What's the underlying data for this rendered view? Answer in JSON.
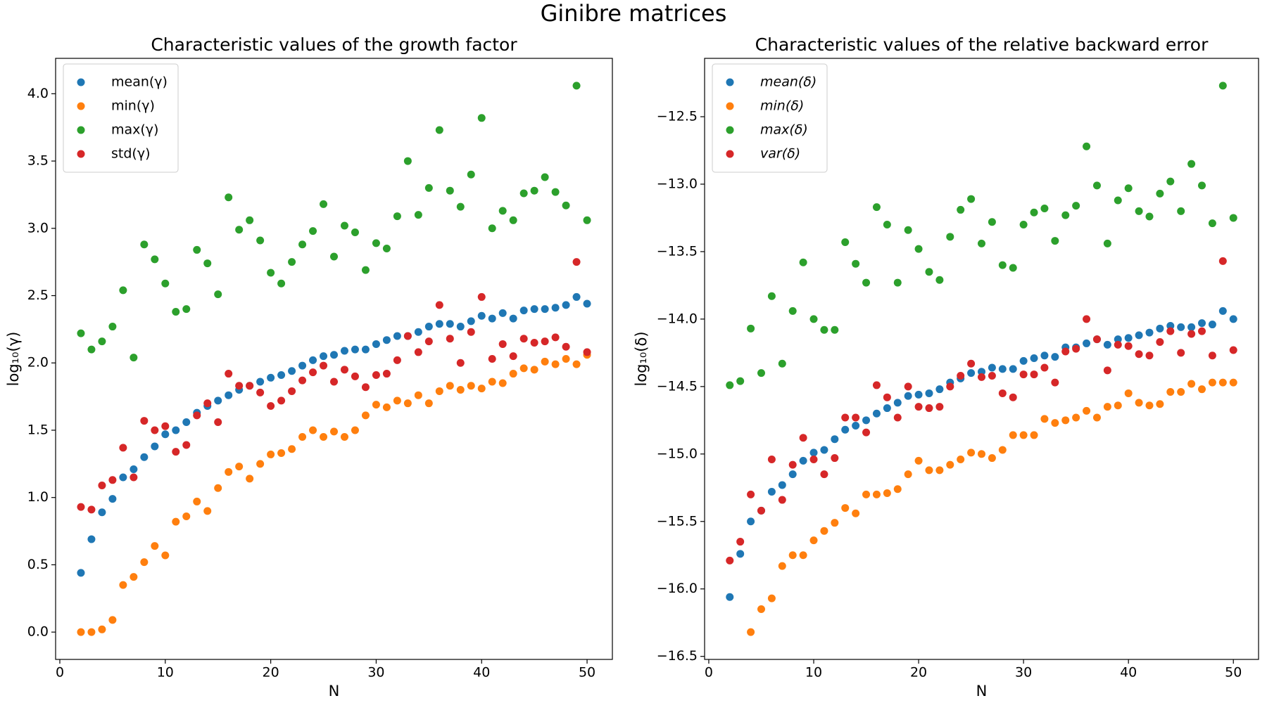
{
  "title": "Ginibre matrices",
  "chart_data": [
    {
      "type": "scatter",
      "title": "Characteristic values of the growth factor",
      "xlabel": "N",
      "ylabel": "log₁₀(γ)",
      "x": [
        2,
        3,
        4,
        5,
        6,
        7,
        8,
        9,
        10,
        11,
        12,
        13,
        14,
        15,
        16,
        17,
        18,
        19,
        20,
        21,
        22,
        23,
        24,
        25,
        26,
        27,
        28,
        29,
        30,
        31,
        32,
        33,
        34,
        35,
        36,
        37,
        38,
        39,
        40,
        41,
        42,
        43,
        44,
        45,
        46,
        47,
        48,
        49,
        50
      ],
      "series": [
        {
          "name": "mean(γ)",
          "color": "#1f77b4",
          "values": [
            0.44,
            0.69,
            0.89,
            0.99,
            1.15,
            1.21,
            1.3,
            1.38,
            1.47,
            1.5,
            1.56,
            1.63,
            1.68,
            1.72,
            1.76,
            1.8,
            1.83,
            1.86,
            1.89,
            1.91,
            1.94,
            1.98,
            2.02,
            2.05,
            2.06,
            2.09,
            2.1,
            2.1,
            2.14,
            2.17,
            2.2,
            2.2,
            2.23,
            2.27,
            2.29,
            2.29,
            2.27,
            2.31,
            2.35,
            2.33,
            2.37,
            2.33,
            2.39,
            2.4,
            2.4,
            2.41,
            2.43,
            2.49,
            2.44
          ]
        },
        {
          "name": "min(γ)",
          "color": "#ff7f0e",
          "values": [
            0.0,
            0.0,
            0.02,
            0.09,
            0.35,
            0.41,
            0.52,
            0.64,
            0.57,
            0.82,
            0.86,
            0.97,
            0.9,
            1.07,
            1.19,
            1.23,
            1.14,
            1.25,
            1.32,
            1.33,
            1.36,
            1.45,
            1.5,
            1.45,
            1.49,
            1.45,
            1.5,
            1.61,
            1.69,
            1.67,
            1.72,
            1.7,
            1.76,
            1.7,
            1.79,
            1.83,
            1.8,
            1.83,
            1.81,
            1.86,
            1.85,
            1.92,
            1.96,
            1.95,
            2.01,
            1.99,
            2.03,
            1.99,
            2.06
          ]
        },
        {
          "name": "max(γ)",
          "color": "#2ca02c",
          "values": [
            2.22,
            2.1,
            2.16,
            2.27,
            2.54,
            2.04,
            2.88,
            2.77,
            2.59,
            2.38,
            2.4,
            2.84,
            2.74,
            2.51,
            3.23,
            2.99,
            3.06,
            2.91,
            2.67,
            2.59,
            2.75,
            2.88,
            2.98,
            3.18,
            2.79,
            3.02,
            2.97,
            2.69,
            2.89,
            2.85,
            3.09,
            3.5,
            3.1,
            3.3,
            3.73,
            3.28,
            3.16,
            3.4,
            3.82,
            3.0,
            3.13,
            3.06,
            3.26,
            3.28,
            3.38,
            3.27,
            3.17,
            4.06,
            3.06
          ]
        },
        {
          "name": "std(γ)",
          "color": "#d62728",
          "values": [
            0.93,
            0.91,
            1.09,
            1.13,
            1.37,
            1.15,
            1.57,
            1.5,
            1.53,
            1.34,
            1.39,
            1.61,
            1.7,
            1.56,
            1.92,
            1.83,
            1.83,
            1.78,
            1.68,
            1.72,
            1.79,
            1.87,
            1.93,
            1.98,
            1.86,
            1.95,
            1.9,
            1.82,
            1.91,
            1.92,
            2.02,
            2.2,
            2.08,
            2.16,
            2.43,
            2.18,
            2.0,
            2.23,
            2.49,
            2.03,
            2.14,
            2.05,
            2.18,
            2.15,
            2.16,
            2.19,
            2.12,
            2.75,
            2.08
          ]
        }
      ],
      "xlim": [
        -0.4,
        52.4
      ],
      "ylim": [
        -0.203,
        4.263
      ],
      "xticks": [
        0,
        10,
        20,
        30,
        40,
        50
      ],
      "yticks": [
        {
          "value": 0,
          "label": "0.0"
        },
        0.5,
        {
          "value": 1,
          "label": "1.0"
        },
        1.5,
        {
          "value": 2,
          "label": "2.0"
        },
        2.5,
        {
          "value": 3,
          "label": "3.0"
        },
        3.5,
        {
          "value": 4,
          "label": "4.0"
        }
      ],
      "legend": "upper left",
      "legend_italic": false
    },
    {
      "type": "scatter",
      "title": "Characteristic values of the relative backward error",
      "xlabel": "N",
      "ylabel": "log₁₀(δ)",
      "x": [
        2,
        3,
        4,
        5,
        6,
        7,
        8,
        9,
        10,
        11,
        12,
        13,
        14,
        15,
        16,
        17,
        18,
        19,
        20,
        21,
        22,
        23,
        24,
        25,
        26,
        27,
        28,
        29,
        30,
        31,
        32,
        33,
        34,
        35,
        36,
        37,
        38,
        39,
        40,
        41,
        42,
        43,
        44,
        45,
        46,
        47,
        48,
        49,
        50
      ],
      "series": [
        {
          "name": "mean(δ)",
          "color": "#1f77b4",
          "values": [
            -16.06,
            -15.74,
            -15.5,
            -15.42,
            -15.28,
            -15.23,
            -15.15,
            -15.05,
            -14.99,
            -14.97,
            -14.89,
            -14.82,
            -14.79,
            -14.75,
            -14.7,
            -14.66,
            -14.62,
            -14.57,
            -14.56,
            -14.55,
            -14.52,
            -14.47,
            -14.44,
            -14.4,
            -14.39,
            -14.36,
            -14.37,
            -14.37,
            -14.31,
            -14.29,
            -14.27,
            -14.28,
            -14.21,
            -14.21,
            -14.18,
            -14.15,
            -14.19,
            -14.15,
            -14.14,
            -14.12,
            -14.1,
            -14.07,
            -14.05,
            -14.06,
            -14.06,
            -14.03,
            -14.04,
            -13.94,
            -14.0
          ]
        },
        {
          "name": "min(δ)",
          "color": "#ff7f0e",
          "values": [
            null,
            null,
            -16.32,
            -16.15,
            -16.07,
            -15.83,
            -15.75,
            -15.75,
            -15.64,
            -15.57,
            -15.51,
            -15.4,
            -15.44,
            -15.3,
            -15.3,
            -15.29,
            -15.26,
            -15.15,
            -15.05,
            -15.12,
            -15.12,
            -15.08,
            -15.04,
            -14.99,
            -15.0,
            -15.03,
            -14.97,
            -14.86,
            -14.86,
            -14.86,
            -14.74,
            -14.77,
            -14.75,
            -14.73,
            -14.68,
            -14.73,
            -14.65,
            -14.64,
            -14.55,
            -14.62,
            -14.64,
            -14.63,
            -14.54,
            -14.54,
            -14.48,
            -14.52,
            -14.47,
            -14.47,
            -14.47
          ]
        },
        {
          "name": "max(δ)",
          "color": "#2ca02c",
          "values": [
            -14.49,
            -14.46,
            -14.07,
            -14.4,
            -13.83,
            -14.33,
            -13.94,
            -13.58,
            -14.0,
            -14.08,
            -14.08,
            -13.43,
            -13.59,
            -13.73,
            -13.17,
            -13.3,
            -13.73,
            -13.34,
            -13.48,
            -13.65,
            -13.71,
            -13.39,
            -13.19,
            -13.11,
            -13.44,
            -13.28,
            -13.6,
            -13.62,
            -13.3,
            -13.21,
            -13.18,
            -13.42,
            -13.23,
            -13.16,
            -12.72,
            -13.01,
            -13.44,
            -13.12,
            -13.03,
            -13.2,
            -13.24,
            -13.07,
            -12.98,
            -13.2,
            -12.85,
            -13.01,
            -13.29,
            -12.27,
            -13.25
          ]
        },
        {
          "name": "var(δ)",
          "color": "#d62728",
          "values": [
            -15.79,
            -15.65,
            -15.3,
            -15.42,
            -15.04,
            -15.34,
            -15.08,
            -14.88,
            -15.04,
            -15.15,
            -15.03,
            -14.73,
            -14.73,
            -14.84,
            -14.49,
            -14.58,
            -14.73,
            -14.5,
            -14.65,
            -14.66,
            -14.65,
            -14.5,
            -14.42,
            -14.33,
            -14.43,
            -14.42,
            -14.55,
            -14.58,
            -14.41,
            -14.41,
            -14.36,
            -14.47,
            -14.24,
            -14.22,
            -14.0,
            -14.15,
            -14.38,
            -14.19,
            -14.2,
            -14.26,
            -14.27,
            -14.17,
            -14.09,
            -14.25,
            -14.11,
            -14.09,
            -14.27,
            -13.57,
            -14.23
          ]
        }
      ],
      "xlim": [
        -0.4,
        52.4
      ],
      "ylim": [
        -16.5225,
        -12.0675
      ],
      "xticks": [
        0,
        10,
        20,
        30,
        40,
        50
      ],
      "yticks": [
        {
          "value": -16.5,
          "label": "−16.5"
        },
        {
          "value": -16,
          "label": "−16.0"
        },
        {
          "value": -15.5,
          "label": "−15.5"
        },
        {
          "value": -15,
          "label": "−15.0"
        },
        {
          "value": -14.5,
          "label": "−14.5"
        },
        {
          "value": -14,
          "label": "−14.0"
        },
        {
          "value": -13.5,
          "label": "−13.5"
        },
        {
          "value": -13,
          "label": "−13.0"
        },
        {
          "value": -12.5,
          "label": "−12.5"
        }
      ],
      "legend": "upper left",
      "legend_italic": true
    }
  ]
}
